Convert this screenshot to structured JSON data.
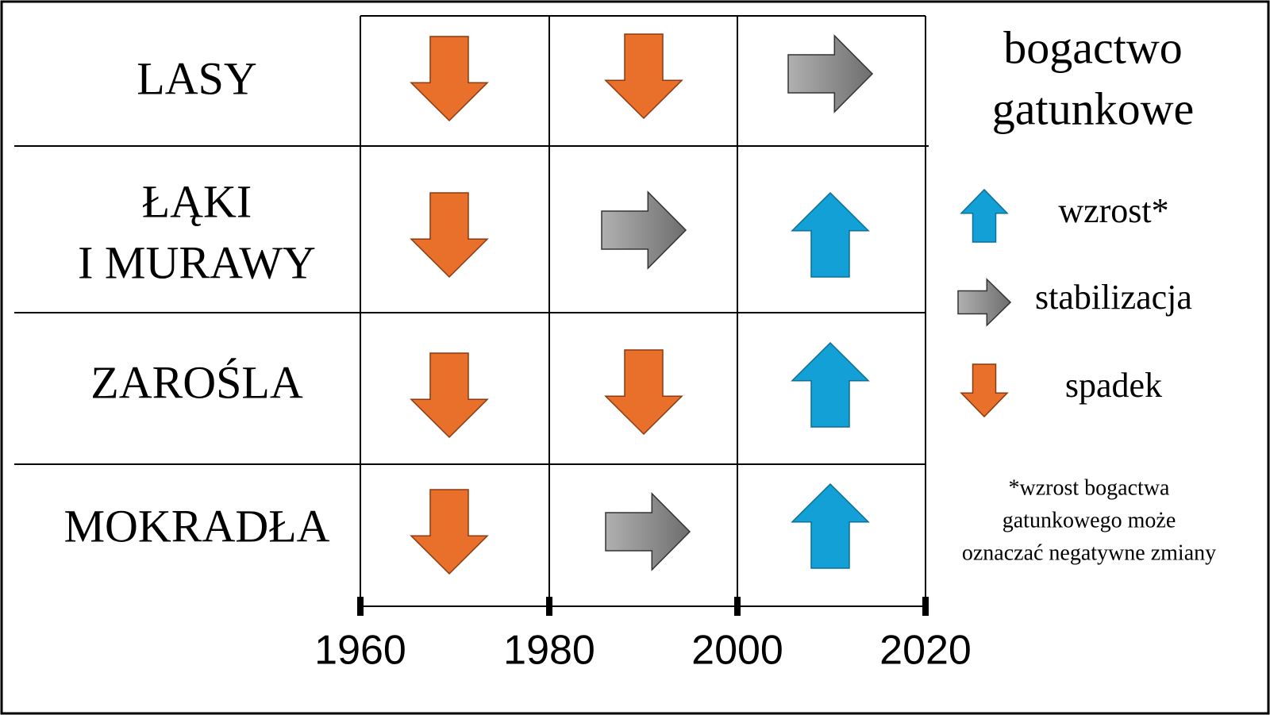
{
  "rows": [
    {
      "label": [
        "LASY"
      ]
    },
    {
      "label": [
        "ŁĄKI",
        "I MURAWY"
      ]
    },
    {
      "label": [
        "ZAROŚLA"
      ]
    },
    {
      "label": [
        "MOKRADŁA"
      ]
    }
  ],
  "axis": {
    "ticks": [
      "1960",
      "1980",
      "2000",
      "2020"
    ]
  },
  "legend": {
    "title": [
      "bogactwo",
      "gatunkowe"
    ],
    "items": [
      "wzrost*",
      "stabilizacja",
      "spadek"
    ],
    "footnote": [
      "*wzrost bogactwa",
      "gatunkowego może",
      "oznaczać negatywne zmiany"
    ]
  }
}
